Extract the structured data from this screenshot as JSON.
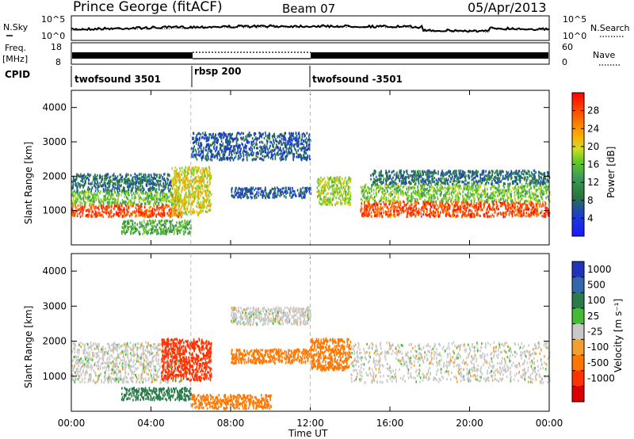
{
  "header": {
    "station": "Prince George (fitACF)",
    "beam": "Beam 07",
    "date": "05/Apr/2013"
  },
  "noise_panel": {
    "left_label": "N.Sky",
    "right_label": "N.Search",
    "left_ticks": [
      "10^5",
      "10^0"
    ],
    "right_ticks": [
      "10^5",
      "10^0"
    ]
  },
  "freq_panel": {
    "left_label_top": "Freq.",
    "left_label_bottom": "[MHz]",
    "left_ticks": [
      "18",
      "8"
    ],
    "right_label": "Nave",
    "right_ticks": [
      "60",
      "0"
    ]
  },
  "cpid": {
    "label": "CPID",
    "segments": [
      "twofsound 3501",
      "rbsp 200",
      "twofsound -3501"
    ]
  },
  "time_axis": {
    "label": "Time UT",
    "ticks": [
      "00:00",
      "04:00",
      "08:00",
      "12:00",
      "16:00",
      "20:00",
      "00:00"
    ]
  },
  "power_panel": {
    "ylabel": "Slant Range [km]",
    "yticks": [
      "1000",
      "2000",
      "3000",
      "4000"
    ],
    "colorbar_label": "Power [dB]",
    "colorbar_ticks": [
      "4",
      "8",
      "12",
      "16",
      "20",
      "24",
      "28"
    ]
  },
  "velocity_panel": {
    "ylabel": "Slant Range [km]",
    "yticks": [
      "1000",
      "2000",
      "3000",
      "4000"
    ],
    "colorbar_label": "Velocity [m s⁻¹]",
    "colorbar_ticks": [
      "1000",
      "500",
      "100",
      "25",
      "-25",
      "-100",
      "-500",
      "-1000"
    ]
  },
  "chart_data": [
    {
      "type": "heatmap",
      "title": "Power",
      "xlabel": "Time UT",
      "ylabel": "Slant Range [km]",
      "xlim": [
        0,
        24
      ],
      "ylim": [
        0,
        4500
      ],
      "colorbar": {
        "label": "Power [dB]",
        "range": [
          0,
          32
        ]
      },
      "grid": false,
      "regions": [
        {
          "t": [
            0.0,
            5.5
          ],
          "r": [
            850,
            1200
          ],
          "value": 28
        },
        {
          "t": [
            0.0,
            5.5
          ],
          "r": [
            1200,
            1600
          ],
          "value": 16
        },
        {
          "t": [
            0.0,
            5.0
          ],
          "r": [
            1600,
            2100
          ],
          "value": 8
        },
        {
          "t": [
            5.0,
            7.0
          ],
          "r": [
            900,
            2300
          ],
          "value": 20
        },
        {
          "t": [
            2.5,
            6.0
          ],
          "r": [
            350,
            750
          ],
          "value": 14
        },
        {
          "t": [
            6.0,
            12.0
          ],
          "r": [
            2500,
            3300
          ],
          "value": 6
        },
        {
          "t": [
            8.0,
            12.0
          ],
          "r": [
            1400,
            1700
          ],
          "value": 6
        },
        {
          "t": [
            12.3,
            14.0
          ],
          "r": [
            1200,
            2000
          ],
          "value": 18
        },
        {
          "t": [
            14.5,
            24.0
          ],
          "r": [
            850,
            1300
          ],
          "value": 28
        },
        {
          "t": [
            14.5,
            24.0
          ],
          "r": [
            1300,
            1800
          ],
          "value": 16
        },
        {
          "t": [
            15.0,
            24.0
          ],
          "r": [
            1800,
            2200
          ],
          "value": 8
        }
      ]
    },
    {
      "type": "heatmap",
      "title": "Velocity",
      "xlabel": "Time UT",
      "ylabel": "Slant Range [km]",
      "xlim": [
        0,
        24
      ],
      "ylim": [
        0,
        4500
      ],
      "colorbar": {
        "label": "Velocity [m s⁻¹]",
        "range": [
          -1000,
          1000
        ]
      },
      "grid": false,
      "regions": [
        {
          "t": [
            0.0,
            5.5
          ],
          "r": [
            850,
            2000
          ],
          "value": 0
        },
        {
          "t": [
            4.5,
            7.0
          ],
          "r": [
            900,
            2100
          ],
          "value": -500
        },
        {
          "t": [
            2.5,
            6.0
          ],
          "r": [
            350,
            700
          ],
          "value": 100
        },
        {
          "t": [
            8.0,
            12.0
          ],
          "r": [
            1400,
            1800
          ],
          "value": -100
        },
        {
          "t": [
            8.0,
            12.0
          ],
          "r": [
            2500,
            3000
          ],
          "value": 0
        },
        {
          "t": [
            6.0,
            10.0
          ],
          "r": [
            100,
            500
          ],
          "value": -100
        },
        {
          "t": [
            12.0,
            14.0
          ],
          "r": [
            1200,
            2100
          ],
          "value": -100
        },
        {
          "t": [
            14.0,
            24.0
          ],
          "r": [
            850,
            2000
          ],
          "value": 0
        }
      ]
    }
  ]
}
